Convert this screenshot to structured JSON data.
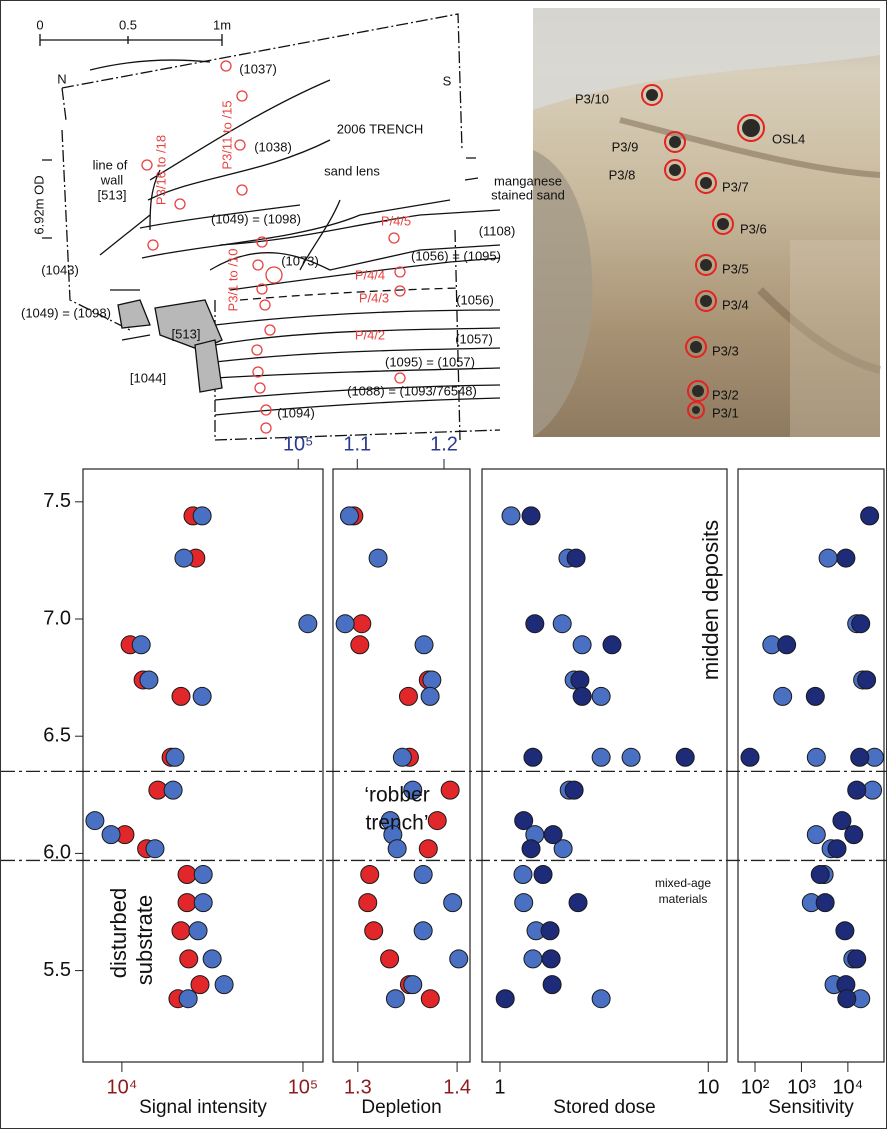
{
  "section_drawing": {
    "scale_labels": [
      "0",
      "0.5",
      "1m"
    ],
    "labels": [
      "N",
      "S",
      "(1037)",
      "P3/11 to /15",
      "P3/16 to /18",
      "(1038)",
      "2006 TRENCH",
      "line of",
      "wall",
      "[513]",
      "6.92m OD",
      "sand lens",
      "manganese",
      "stained sand",
      "(1049) = (1098)",
      "(1108)",
      "P/4/5",
      "(1056) = (1095)",
      "(1043)",
      "(1073)",
      "P/4/4",
      "P/4/3",
      "(1056)",
      "P3/1 to /10",
      "(1049) = (1098)",
      "[513]",
      "P/4/2",
      "(1057)",
      "(1095) = (1057)",
      "[1044]",
      "(1088) = (1093/76548)",
      "(1094)"
    ]
  },
  "photo": {
    "labels": [
      "P3/10",
      "P3/9",
      "P3/8",
      "OSL4",
      "P3/7",
      "P3/6",
      "P3/5",
      "P3/4",
      "P3/3",
      "P3/2",
      "P3/1"
    ]
  },
  "chart_data": [
    {
      "type": "scatter",
      "xlabel": "Signal intensity",
      "xscale": "log",
      "xlim": [
        6100,
        129000
      ],
      "xticks": [
        {
          "value": 10000,
          "label": "10⁴"
        },
        {
          "value": 100000,
          "label": "10⁵"
        }
      ],
      "xtick_color": "#8c1c1c",
      "x2lim": [
        6490,
        137000
      ],
      "x2ticks": [
        {
          "value": 100000,
          "label": "10⁵"
        }
      ],
      "x2tick_color": "#2b3a8c",
      "ylim": [
        5.11,
        7.64
      ],
      "yticks": [
        7.5,
        {
          "value": 7,
          "label": "7.0"
        },
        6.5,
        {
          "value": 6,
          "label": "6.0"
        },
        5.5
      ],
      "hlines": [
        6.35,
        5.97
      ],
      "annotations": [
        "disturbed",
        "substrate"
      ],
      "series": [
        {
          "color": "#e2272a",
          "axis": "x",
          "x": [
            24700,
            25600,
            11100,
            13100,
            21200,
            18700,
            15800,
            10400,
            13700,
            22900,
            22900,
            21200,
            23400,
            27000,
            20400
          ],
          "y": [
            7.44,
            7.26,
            6.89,
            6.74,
            6.67,
            6.41,
            6.27,
            6.08,
            6.02,
            5.91,
            5.79,
            5.67,
            5.55,
            5.44,
            5.38
          ]
        },
        {
          "color": "#4a70c4",
          "axis": "x2",
          "x": [
            29500,
            23400,
            113000,
            13600,
            15000,
            29500,
            20900,
            20400,
            7550,
            9270,
            16200,
            29900,
            29900,
            28000,
            33500,
            39000,
            24700
          ],
          "y": [
            7.44,
            7.26,
            6.98,
            6.89,
            6.74,
            6.67,
            6.41,
            6.27,
            6.14,
            6.08,
            6.02,
            5.91,
            5.79,
            5.67,
            5.55,
            5.44,
            5.38
          ]
        }
      ]
    },
    {
      "type": "scatter",
      "xlabel": "Depletion",
      "xscale": "linear",
      "xlim": [
        1.275,
        1.413
      ],
      "xticks": [
        1.3,
        1.4
      ],
      "xtick_color": "#8c1c1c",
      "x2lim": [
        1.072,
        1.23
      ],
      "x2ticks": [
        1.1,
        1.2
      ],
      "x2tick_color": "#2b3a8c",
      "ylim": [
        5.11,
        7.64
      ],
      "annotations": [
        "‘robber",
        "trench’"
      ],
      "series": [
        {
          "color": "#e2272a",
          "axis": "x",
          "x": [
            1.296,
            1.304,
            1.302,
            1.371,
            1.351,
            1.352,
            1.393,
            1.38,
            1.371,
            1.312,
            1.31,
            1.316,
            1.332,
            1.352,
            1.373
          ],
          "y": [
            7.44,
            6.98,
            6.89,
            6.74,
            6.67,
            6.41,
            6.27,
            6.14,
            6.02,
            5.91,
            5.79,
            5.67,
            5.55,
            5.44,
            5.38
          ]
        },
        {
          "color": "#4a70c4",
          "axis": "x2",
          "x": [
            1.091,
            1.124,
            1.086,
            1.177,
            1.186,
            1.184,
            1.152,
            1.164,
            1.138,
            1.141,
            1.146,
            1.176,
            1.21,
            1.176,
            1.217,
            1.164,
            1.144
          ],
          "y": [
            7.44,
            7.26,
            6.98,
            6.89,
            6.74,
            6.67,
            6.41,
            6.27,
            6.14,
            6.08,
            6.02,
            5.91,
            5.79,
            5.67,
            5.55,
            5.44,
            5.38
          ]
        }
      ]
    },
    {
      "type": "scatter",
      "xlabel": "Stored dose",
      "xscale": "log",
      "xlim": [
        0.82,
        12.3
      ],
      "xticks": [
        1,
        10
      ],
      "xtick_color": "#111111",
      "ylim": [
        5.11,
        7.64
      ],
      "annotations": [
        "midden deposits",
        "mixed-age",
        "materials"
      ],
      "series": [
        {
          "color": "#4a70c4",
          "axis": "x",
          "x": [
            1.13,
            2.12,
            1.99,
            2.48,
            2.27,
            3.06,
            3.06,
            4.26,
            2.15,
            1.47,
            2.01,
            1.29,
            1.3,
            1.49,
            1.44,
            3.06
          ],
          "y": [
            7.44,
            7.26,
            6.98,
            6.89,
            6.74,
            6.67,
            6.41,
            6.41,
            6.27,
            6.08,
            6.02,
            5.91,
            5.79,
            5.67,
            5.55,
            5.38
          ]
        },
        {
          "color": "#1d2b78",
          "axis": "x",
          "x": [
            1.41,
            2.32,
            1.47,
            3.45,
            2.42,
            2.48,
            1.44,
            7.75,
            2.27,
            1.3,
            1.8,
            1.41,
            1.61,
            2.37,
            1.74,
            1.76,
            1.78,
            1.06
          ],
          "y": [
            7.44,
            7.26,
            6.98,
            6.89,
            6.74,
            6.67,
            6.41,
            6.41,
            6.27,
            6.14,
            6.08,
            6.02,
            5.91,
            5.79,
            5.67,
            5.55,
            5.44,
            5.38
          ]
        }
      ]
    },
    {
      "type": "scatter",
      "xlabel": "Sensitivity",
      "xscale": "log",
      "xlim": [
        43,
        60000
      ],
      "xticks": [
        {
          "value": 100,
          "label": "10²"
        },
        {
          "value": 1000,
          "label": "10³"
        },
        {
          "value": 10000,
          "label": "10⁴"
        }
      ],
      "xtick_color": "#111111",
      "ylim": [
        5.11,
        7.64
      ],
      "series": [
        {
          "color": "#4a70c4",
          "axis": "x",
          "x": [
            3750,
            15500,
            230,
            20800,
            394,
            2090,
            37500,
            34000,
            2090,
            4350,
            3080,
            1630,
            12800,
            5040,
            18900
          ],
          "y": [
            7.26,
            6.98,
            6.89,
            6.74,
            6.67,
            6.41,
            6.41,
            6.27,
            6.08,
            6.02,
            5.91,
            5.79,
            5.55,
            5.44,
            5.38
          ]
        },
        {
          "color": "#1d2b78",
          "axis": "x",
          "x": [
            29400,
            9060,
            18900,
            480,
            25300,
            1990,
            78,
            18000,
            15500,
            7450,
            13400,
            5830,
            2540,
            3240,
            8630,
            15500,
            9060,
            9480
          ],
          "y": [
            7.44,
            7.26,
            6.98,
            6.89,
            6.74,
            6.67,
            6.41,
            6.41,
            6.27,
            6.14,
            6.08,
            6.02,
            5.91,
            5.79,
            5.67,
            5.55,
            5.44,
            5.38
          ]
        }
      ]
    }
  ]
}
